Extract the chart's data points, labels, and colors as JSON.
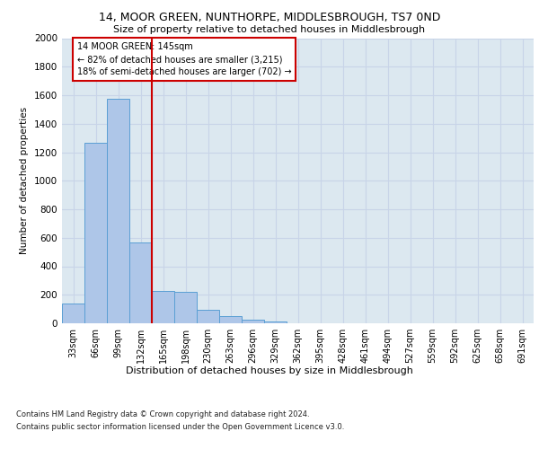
{
  "title": "14, MOOR GREEN, NUNTHORPE, MIDDLESBROUGH, TS7 0ND",
  "subtitle": "Size of property relative to detached houses in Middlesbrough",
  "xlabel": "Distribution of detached houses by size in Middlesbrough",
  "ylabel": "Number of detached properties",
  "bar_labels": [
    "33sqm",
    "66sqm",
    "99sqm",
    "132sqm",
    "165sqm",
    "198sqm",
    "230sqm",
    "263sqm",
    "296sqm",
    "329sqm",
    "362sqm",
    "395sqm",
    "428sqm",
    "461sqm",
    "494sqm",
    "527sqm",
    "559sqm",
    "592sqm",
    "625sqm",
    "658sqm",
    "691sqm"
  ],
  "bar_values": [
    140,
    1265,
    1575,
    565,
    225,
    220,
    95,
    50,
    25,
    15,
    0,
    0,
    0,
    0,
    0,
    0,
    0,
    0,
    0,
    0,
    0
  ],
  "bar_color": "#aec6e8",
  "bar_edge_color": "#5a9fd4",
  "ylim": [
    0,
    2000
  ],
  "yticks": [
    0,
    200,
    400,
    600,
    800,
    1000,
    1200,
    1400,
    1600,
    1800,
    2000
  ],
  "property_line_x": 3.5,
  "annotation_text": "14 MOOR GREEN: 145sqm\n← 82% of detached houses are smaller (3,215)\n18% of semi-detached houses are larger (702) →",
  "annotation_box_color": "#ffffff",
  "annotation_border_color": "#cc0000",
  "vline_color": "#cc0000",
  "footer_line1": "Contains HM Land Registry data © Crown copyright and database right 2024.",
  "footer_line2": "Contains public sector information licensed under the Open Government Licence v3.0.",
  "grid_color": "#c8d4e8",
  "background_color": "#dce8f0",
  "fig_background": "#ffffff"
}
